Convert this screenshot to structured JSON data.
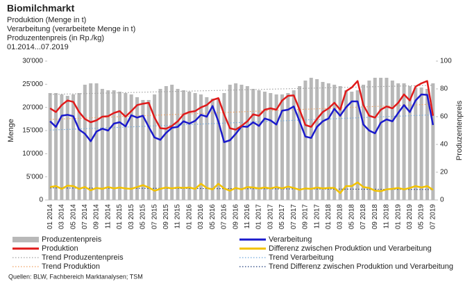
{
  "chart_data": {
    "type": "combo",
    "title": "Biomilchmarkt",
    "subtitles": [
      "Produktion (Menge in t)",
      "Verarbeitung (verarbeitete Menge in t)",
      "Produzentenpreis (in Rp./kg)",
      "01.2014...07.2019"
    ],
    "y_label": "Menge",
    "y2_label": "Produzentenpreis",
    "source": "Quellen: BLW, Fachbereich Marktanalysen; TSM",
    "ylim": [
      0,
      30000
    ],
    "yticks": [
      0,
      {
        "value": 5000,
        "label": "5'000"
      },
      {
        "value": 10000,
        "label": "10'000"
      },
      {
        "value": 15000,
        "label": "15'000"
      },
      {
        "value": 20000,
        "label": "20'000"
      },
      {
        "value": 25000,
        "label": "25'000"
      },
      {
        "value": 30000,
        "label": "30'000"
      }
    ],
    "y2lim": [
      0,
      100
    ],
    "y2ticks": [
      0,
      20,
      40,
      60,
      80,
      100
    ],
    "categories": [
      "01 2014",
      null,
      "03 2014",
      null,
      "05 2014",
      null,
      "07 2014",
      null,
      "09 2014",
      null,
      "11 2014",
      null,
      "01 2015",
      null,
      "03 2015",
      null,
      "05 2015",
      null,
      "07 2015",
      null,
      "09 2015",
      null,
      "11 2015",
      null,
      "01 2016",
      null,
      "03 2016",
      null,
      "05 2016",
      null,
      "07 2016",
      null,
      "09 2016",
      null,
      "11 2016",
      null,
      "01 2017",
      null,
      "03 2017",
      null,
      "05 2017",
      null,
      "07 2017",
      null,
      "09 2017",
      null,
      "11 2017",
      null,
      "01 2018",
      null,
      "03 2018",
      null,
      "05 2018",
      null,
      "07 2018",
      null,
      "09 2018",
      null,
      "11 2018",
      null,
      "01 2019",
      null,
      "03 2019",
      null,
      "05 2019",
      null,
      "07 2019"
    ],
    "series": [
      {
        "name": "Produzentenpreis",
        "type": "bar",
        "axis": "y2",
        "color": "#b8b8b8",
        "values": [
          77,
          77,
          76,
          75,
          76,
          77,
          83,
          84,
          84,
          80,
          79,
          79,
          78,
          77,
          76,
          74,
          72,
          72,
          76,
          80,
          82,
          83,
          80,
          79,
          78,
          77,
          76,
          74,
          73,
          73,
          77,
          83,
          84,
          83,
          82,
          80,
          79,
          78,
          77,
          76,
          76,
          77,
          79,
          82,
          86,
          88,
          87,
          85,
          84,
          83,
          82,
          79,
          78,
          79,
          83,
          86,
          88,
          88,
          88,
          86,
          84,
          84,
          82,
          81,
          81,
          80,
          84
        ]
      },
      {
        "name": "Verarbeitung",
        "type": "line",
        "color": "#1a1acc",
        "values": [
          17000,
          15800,
          18200,
          18400,
          18100,
          15200,
          14300,
          12700,
          14800,
          15400,
          15000,
          16500,
          16800,
          15900,
          18300,
          17800,
          18200,
          15800,
          13500,
          13000,
          14500,
          15600,
          15800,
          17000,
          16500,
          17100,
          18400,
          18000,
          20300,
          17000,
          12500,
          12900,
          14300,
          15900,
          15800,
          16800,
          16000,
          17600,
          17200,
          16300,
          19300,
          19500,
          20200,
          17000,
          13700,
          13400,
          15800,
          17000,
          17600,
          19700,
          18200,
          20000,
          21300,
          21300,
          16300,
          15000,
          14400,
          16700,
          17400,
          17000,
          18800,
          20500,
          19000,
          21500,
          22800,
          22700,
          16200
        ]
      },
      {
        "name": "Produktion",
        "type": "line",
        "color": "#e01a1a",
        "values": [
          19800,
          19000,
          20500,
          21500,
          21200,
          19000,
          17500,
          16800,
          17200,
          18000,
          18100,
          18800,
          19200,
          18000,
          19200,
          20500,
          20800,
          21000,
          17800,
          15500,
          15400,
          16000,
          17000,
          18500,
          19000,
          19200,
          20000,
          20500,
          21600,
          22000,
          18500,
          15500,
          15200,
          16000,
          17000,
          18500,
          18200,
          19500,
          19800,
          19500,
          21500,
          22500,
          22600,
          19500,
          16200,
          15800,
          17500,
          19000,
          19800,
          21000,
          19500,
          23500,
          24300,
          25700,
          20500,
          18200,
          17800,
          19500,
          20200,
          19800,
          21000,
          22800,
          21500,
          24500,
          25200,
          25700,
          18200
        ]
      },
      {
        "name": "Differenz zwischen Produktion und Verarbeitung",
        "type": "line",
        "color": "#f2c200",
        "values": [
          2800,
          3000,
          2400,
          3100,
          3000,
          2400,
          2800,
          2100,
          2600,
          2400,
          2800,
          2500,
          2700,
          2500,
          2400,
          2800,
          3200,
          2700,
          2000,
          2400,
          2700,
          2500,
          2700,
          2600,
          2700,
          2400,
          3500,
          2600,
          2300,
          3500,
          2500,
          2000,
          2600,
          2300,
          2800,
          2700,
          2500,
          2700,
          2500,
          2800,
          2500,
          2900,
          2600,
          2200,
          2500,
          2400,
          2700,
          2500,
          2600,
          2600,
          1500,
          3000,
          3000,
          3800,
          2800,
          2600,
          2000,
          1900,
          2300,
          2400,
          2600,
          2300,
          2600,
          3000,
          2700,
          3000,
          2200
        ]
      },
      {
        "name": "Trend Produzentenpreis",
        "type": "trend",
        "axis": "y2",
        "color": "#a0a0a0",
        "values": [
          76,
          76.1,
          76.2,
          76.3,
          76.4,
          76.5,
          76.6,
          76.7,
          76.8,
          76.9,
          77,
          77.1,
          77.2,
          77.3,
          77.4,
          77.5,
          77.6,
          77.7,
          77.8,
          77.9,
          78,
          78.1,
          78.2,
          78.3,
          78.4,
          78.5,
          78.6,
          78.7,
          78.8,
          78.9,
          79,
          79.1,
          79.2,
          79.3,
          79.4,
          79.5,
          79.6,
          79.7,
          79.8,
          79.9,
          80,
          80.1,
          80.2,
          80.3,
          80.4,
          80.5,
          80.6,
          80.7,
          80.8,
          80.9,
          81,
          81.1,
          81.2,
          81.3,
          81.4,
          81.5,
          81.6,
          81.7,
          81.8,
          81.9,
          82,
          82.1,
          82.2,
          82.3,
          82.4,
          82.5,
          82.6
        ]
      },
      {
        "name": "Trend Verarbeitung",
        "type": "trend",
        "color": "#6fa8dc",
        "values": [
          15100,
          15150,
          15200,
          15250,
          15300,
          15350,
          15400,
          15450,
          15500,
          15550,
          15600,
          15650,
          15700,
          15750,
          15800,
          15850,
          15900,
          15950,
          16000,
          16050,
          16100,
          16150,
          16200,
          16250,
          16300,
          16350,
          16400,
          16450,
          16500,
          16550,
          16600,
          16650,
          16700,
          16750,
          16800,
          16850,
          16900,
          16950,
          17000,
          17050,
          17100,
          17150,
          17200,
          17250,
          17300,
          17350,
          17400,
          17450,
          17500,
          17550,
          17600,
          17650,
          17700,
          17750,
          17800,
          17850,
          17900,
          17950,
          18000,
          18050,
          18100,
          18150,
          18200,
          18250,
          18300,
          18350,
          18400
        ]
      },
      {
        "name": "Trend Produktion",
        "type": "trend",
        "color": "#f0a060",
        "values": [
          17400,
          17450,
          17500,
          17550,
          17600,
          17650,
          17700,
          17750,
          17800,
          17850,
          17900,
          17950,
          18000,
          18050,
          18100,
          18150,
          18200,
          18250,
          18300,
          18350,
          18400,
          18450,
          18500,
          18550,
          18600,
          18650,
          18700,
          18750,
          18800,
          18850,
          18900,
          18950,
          19000,
          19050,
          19100,
          19150,
          19200,
          19250,
          19300,
          19350,
          19400,
          19450,
          19500,
          19550,
          19600,
          19650,
          19700,
          19750,
          19800,
          19850,
          19900,
          19950,
          20000,
          20050,
          20100,
          20150,
          20200,
          20250,
          20300,
          20350,
          20400,
          20450,
          20500,
          20550,
          20600,
          20650,
          20700
        ]
      },
      {
        "name": "Trend Differenz zwischen Produktion und Verarbeitung",
        "type": "trend",
        "color": "#1f3b7a",
        "values": [
          2600,
          2595,
          2590,
          2585,
          2580,
          2575,
          2570,
          2565,
          2560,
          2555,
          2550,
          2545,
          2540,
          2535,
          2530,
          2525,
          2520,
          2515,
          2510,
          2505,
          2500,
          2495,
          2490,
          2485,
          2480,
          2475,
          2470,
          2465,
          2460,
          2455,
          2450,
          2445,
          2440,
          2435,
          2430,
          2425,
          2420,
          2415,
          2410,
          2405,
          2400,
          2395,
          2390,
          2385,
          2380,
          2375,
          2370,
          2365,
          2360,
          2355,
          2350,
          2345,
          2340,
          2335,
          2330,
          2325,
          2320,
          2315,
          2310,
          2305,
          2300,
          2295,
          2290,
          2285,
          2280,
          2275,
          2270
        ]
      }
    ]
  }
}
